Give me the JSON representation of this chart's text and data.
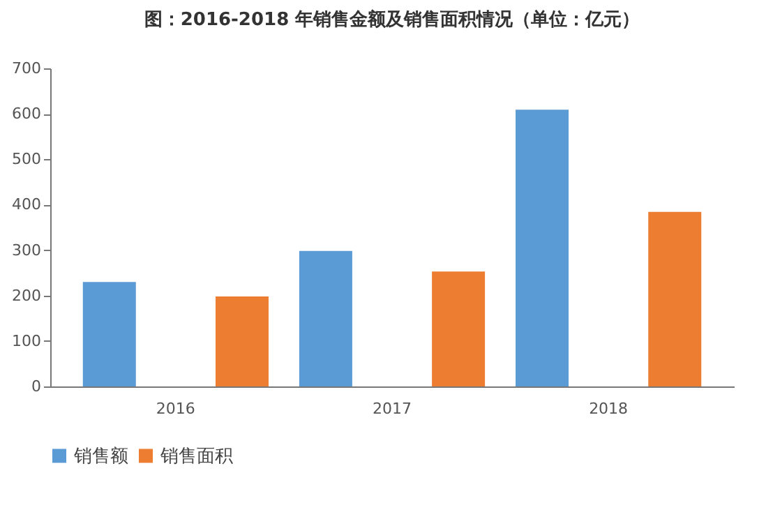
{
  "chart_data": {
    "type": "bar",
    "title": "图：2016-2018 年销售金额及销售面积情况（单位：亿元）",
    "categories": [
      "2016",
      "2017",
      "2018"
    ],
    "series": [
      {
        "name": "销售额",
        "color": "#5b9bd5",
        "values": [
          230,
          298,
          609
        ]
      },
      {
        "name": "销售面积",
        "color": "#ed7d31",
        "values": [
          198,
          253,
          384
        ]
      }
    ],
    "ylim": [
      0,
      700
    ],
    "yticks": [
      0,
      100,
      200,
      300,
      400,
      500,
      600,
      700
    ],
    "grid": false,
    "legend": "bottom"
  }
}
